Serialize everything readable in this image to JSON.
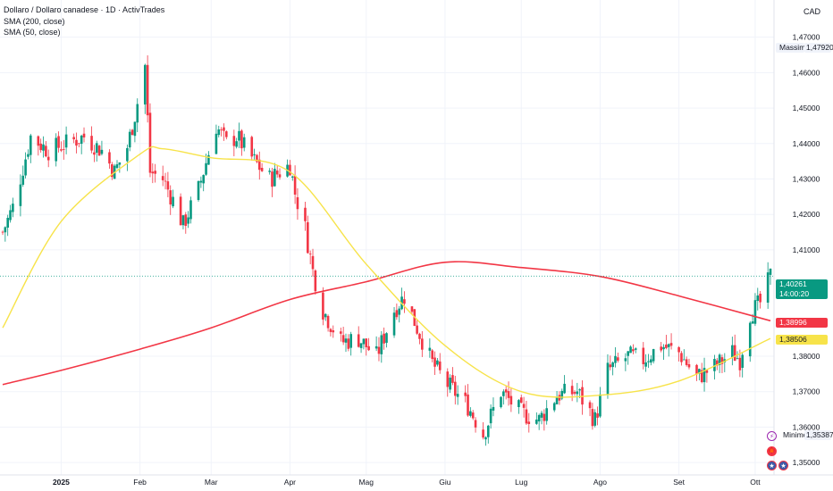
{
  "legend": {
    "title": "Dollaro / Dollaro canadese · 1D · ActivTrades",
    "sma200": "SMA (200, close)",
    "sma50": "SMA (50, close)"
  },
  "currency": "CAD",
  "colors": {
    "up": "#089981",
    "down": "#f23645",
    "sma200": "#f23645",
    "sma50": "#f7e34a",
    "last_bg": "#089981",
    "grid": "#f0f3fa",
    "text": "#131722"
  },
  "labels": {
    "max_label": "Massimo",
    "max_value": "1,47920",
    "min_label": "Minimo",
    "min_value": "1,35387",
    "last_price": "1,40261",
    "countdown": "14:00:20",
    "sma200_value": "1,38996",
    "sma50_value": "1,38506"
  },
  "events": [
    {
      "name": "dividend-icon",
      "glyph": "⚡"
    },
    {
      "name": "canada-flag-icon",
      "glyph": "🍁"
    },
    {
      "name": "usa-flag-icon-1",
      "glyph": "★"
    },
    {
      "name": "usa-flag-icon-2",
      "glyph": "★"
    }
  ],
  "chart_data": {
    "type": "candlestick",
    "x_range": [
      "2024-12-09",
      "2025-10-07"
    ],
    "ylim": [
      1.3465,
      1.4805
    ],
    "y_ticks": [
      {
        "v": 1.47,
        "label": "1,47000"
      },
      {
        "v": 1.46,
        "label": "1,46000"
      },
      {
        "v": 1.45,
        "label": "1,45000"
      },
      {
        "v": 1.44,
        "label": "1,44000"
      },
      {
        "v": 1.43,
        "label": "1,43000"
      },
      {
        "v": 1.42,
        "label": "1,42000"
      },
      {
        "v": 1.41,
        "label": "1,41000"
      },
      {
        "v": 1.38,
        "label": "1,38000"
      },
      {
        "v": 1.37,
        "label": "1,37000"
      },
      {
        "v": 1.36,
        "label": "1,36000"
      },
      {
        "v": 1.35,
        "label": "1,35000"
      }
    ],
    "x_ticks": [
      {
        "date": "2025-01-01",
        "label": "2025"
      },
      {
        "date": "2025-02-01",
        "label": "Feb"
      },
      {
        "date": "2025-03-01",
        "label": "Mar"
      },
      {
        "date": "2025-04-01",
        "label": "Apr"
      },
      {
        "date": "2025-05-01",
        "label": "Mag"
      },
      {
        "date": "2025-06-01",
        "label": "Giu"
      },
      {
        "date": "2025-07-01",
        "label": "Lug"
      },
      {
        "date": "2025-08-01",
        "label": "Ago"
      },
      {
        "date": "2025-09-01",
        "label": "Set"
      },
      {
        "date": "2025-10-01",
        "label": "Ott"
      }
    ],
    "close_anchors": [
      [
        "2024-12-09",
        1.415
      ],
      [
        "2024-12-13",
        1.422
      ],
      [
        "2024-12-18",
        1.436
      ],
      [
        "2024-12-20",
        1.442
      ],
      [
        "2024-12-27",
        1.438
      ],
      [
        "2025-01-03",
        1.44
      ],
      [
        "2025-01-10",
        1.442
      ],
      [
        "2025-01-17",
        1.438
      ],
      [
        "2025-01-22",
        1.432
      ],
      [
        "2025-01-27",
        1.439
      ],
      [
        "2025-01-30",
        1.448
      ],
      [
        "2025-02-03",
        1.462
      ],
      [
        "2025-02-05",
        1.432
      ],
      [
        "2025-02-10",
        1.43
      ],
      [
        "2025-02-14",
        1.424
      ],
      [
        "2025-02-18",
        1.417
      ],
      [
        "2025-02-24",
        1.427
      ],
      [
        "2025-03-03",
        1.445
      ],
      [
        "2025-03-07",
        1.44
      ],
      [
        "2025-03-11",
        1.442
      ],
      [
        "2025-03-18",
        1.435
      ],
      [
        "2025-03-24",
        1.43
      ],
      [
        "2025-04-01",
        1.434
      ],
      [
        "2025-04-03",
        1.426
      ],
      [
        "2025-04-07",
        1.416
      ],
      [
        "2025-04-10",
        1.404
      ],
      [
        "2025-04-14",
        1.393
      ],
      [
        "2025-04-21",
        1.384
      ],
      [
        "2025-04-28",
        1.385
      ],
      [
        "2025-05-05",
        1.38
      ],
      [
        "2025-05-12",
        1.393
      ],
      [
        "2025-05-16",
        1.397
      ],
      [
        "2025-05-21",
        1.388
      ],
      [
        "2025-05-27",
        1.378
      ],
      [
        "2025-06-02",
        1.372
      ],
      [
        "2025-06-10",
        1.366
      ],
      [
        "2025-06-16",
        1.358
      ],
      [
        "2025-06-23",
        1.37
      ],
      [
        "2025-07-01",
        1.364
      ],
      [
        "2025-07-08",
        1.362
      ],
      [
        "2025-07-15",
        1.369
      ],
      [
        "2025-07-23",
        1.37
      ],
      [
        "2025-07-30",
        1.362
      ],
      [
        "2025-08-04",
        1.376
      ],
      [
        "2025-08-12",
        1.38
      ],
      [
        "2025-08-18",
        1.379
      ],
      [
        "2025-08-25",
        1.383
      ],
      [
        "2025-09-01",
        1.381
      ],
      [
        "2025-09-08",
        1.374
      ],
      [
        "2025-09-15",
        1.377
      ],
      [
        "2025-09-22",
        1.381
      ],
      [
        "2025-09-25",
        1.379
      ],
      [
        "2025-09-29",
        1.392
      ],
      [
        "2025-10-03",
        1.395
      ],
      [
        "2025-10-07",
        1.4026
      ]
    ],
    "sma200": {
      "name": "SMA (200, close)",
      "points": [
        [
          "2024-12-09",
          1.372
        ],
        [
          "2025-01-01",
          1.376
        ],
        [
          "2025-02-01",
          1.382
        ],
        [
          "2025-03-01",
          1.388
        ],
        [
          "2025-04-01",
          1.396
        ],
        [
          "2025-05-01",
          1.401
        ],
        [
          "2025-06-01",
          1.4065
        ],
        [
          "2025-07-01",
          1.405
        ],
        [
          "2025-08-01",
          1.4025
        ],
        [
          "2025-09-01",
          1.397
        ],
        [
          "2025-10-07",
          1.39
        ]
      ]
    },
    "sma50": {
      "name": "SMA (50, close)",
      "points": [
        [
          "2024-12-09",
          1.388
        ],
        [
          "2025-01-01",
          1.418
        ],
        [
          "2025-02-01",
          1.437
        ],
        [
          "2025-02-10",
          1.4385
        ],
        [
          "2025-03-01",
          1.436
        ],
        [
          "2025-04-01",
          1.432
        ],
        [
          "2025-05-01",
          1.406
        ],
        [
          "2025-06-01",
          1.383
        ],
        [
          "2025-07-01",
          1.37
        ],
        [
          "2025-08-01",
          1.369
        ],
        [
          "2025-09-01",
          1.373
        ],
        [
          "2025-10-07",
          1.385
        ]
      ]
    }
  }
}
